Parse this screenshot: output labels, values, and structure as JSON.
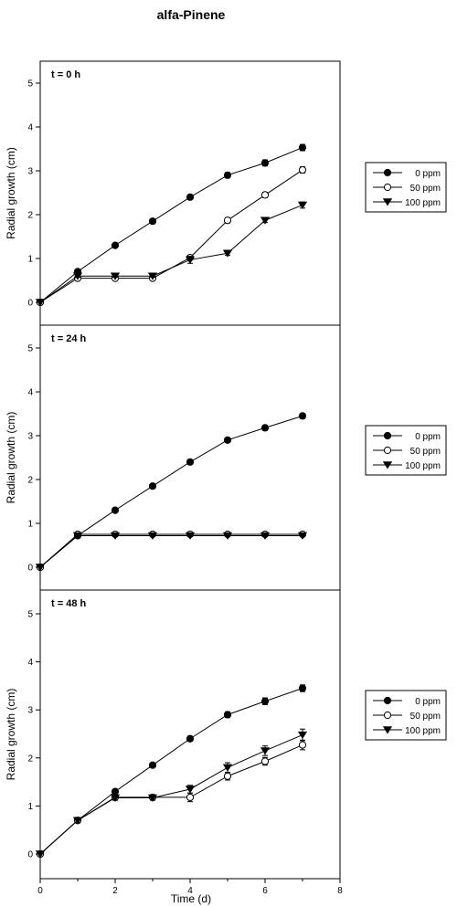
{
  "figure": {
    "title": "alfa-Pinene",
    "xlabel": "Time (d)"
  },
  "chart_data": [
    {
      "type": "line",
      "panel_label": "t = 0 h",
      "ylabel": "Radial growth (cm)",
      "x": [
        0,
        1,
        2,
        3,
        4,
        5,
        6,
        7
      ],
      "xlim": [
        0,
        8
      ],
      "ylim": [
        0,
        5.5
      ],
      "yticks": [
        0,
        1,
        2,
        3,
        4,
        5
      ],
      "xticks": [],
      "legend_position": "right",
      "series": [
        {
          "name": "0 ppm",
          "marker": "filled-circle",
          "values": [
            0,
            0.7,
            1.3,
            1.85,
            2.4,
            2.9,
            3.18,
            3.53
          ],
          "errors": [
            0,
            0.04,
            0.04,
            0.04,
            0.05,
            0.06,
            0.07,
            0.07
          ]
        },
        {
          "name": "50 ppm",
          "marker": "open-circle",
          "values": [
            0,
            0.55,
            0.55,
            0.55,
            1.02,
            1.87,
            2.45,
            3.02
          ],
          "errors": [
            0,
            0.04,
            0.04,
            0.04,
            0.05,
            0.06,
            0.06,
            0.07
          ]
        },
        {
          "name": "100 ppm",
          "marker": "filled-triangle-down",
          "values": [
            0,
            0.6,
            0.6,
            0.6,
            0.97,
            1.12,
            1.87,
            2.22
          ],
          "errors": [
            0,
            0.03,
            0.03,
            0.03,
            0.08,
            0.05,
            0.05,
            0.07
          ]
        }
      ]
    },
    {
      "type": "line",
      "panel_label": "t = 24 h",
      "ylabel": "Radial growth (cm)",
      "x": [
        0,
        1,
        2,
        3,
        4,
        5,
        6,
        7
      ],
      "xlim": [
        0,
        8
      ],
      "ylim": [
        0,
        5.5
      ],
      "yticks": [
        0,
        1,
        2,
        3,
        4,
        5
      ],
      "xticks": [],
      "legend_position": "right",
      "series": [
        {
          "name": "0 ppm",
          "marker": "filled-circle",
          "values": [
            0,
            0.72,
            1.3,
            1.85,
            2.4,
            2.9,
            3.18,
            3.45
          ],
          "errors": [
            0,
            0.04,
            0.04,
            0.04,
            0.05,
            0.05,
            0.06,
            0.06
          ]
        },
        {
          "name": "50 ppm",
          "marker": "open-circle",
          "values": [
            0,
            0.75,
            0.75,
            0.75,
            0.75,
            0.75,
            0.75,
            0.75
          ],
          "errors": [
            0,
            0.02,
            0.02,
            0.02,
            0.02,
            0.02,
            0.02,
            0.02
          ]
        },
        {
          "name": "100 ppm",
          "marker": "filled-triangle-down",
          "values": [
            0,
            0.72,
            0.72,
            0.72,
            0.72,
            0.72,
            0.72,
            0.72
          ],
          "errors": [
            0,
            0.02,
            0.02,
            0.02,
            0.02,
            0.02,
            0.02,
            0.02
          ]
        }
      ]
    },
    {
      "type": "line",
      "panel_label": "t = 48 h",
      "ylabel": "Radial growth (cm)",
      "x": [
        0,
        1,
        2,
        3,
        4,
        5,
        6,
        7
      ],
      "xlim": [
        0,
        8
      ],
      "ylim": [
        0,
        5.5
      ],
      "yticks": [
        0,
        1,
        2,
        3,
        4,
        5
      ],
      "xticks": [
        0,
        2,
        4,
        6,
        8
      ],
      "legend_position": "right",
      "series": [
        {
          "name": "0 ppm",
          "marker": "filled-circle",
          "values": [
            0,
            0.7,
            1.3,
            1.85,
            2.4,
            2.9,
            3.18,
            3.45
          ],
          "errors": [
            0,
            0.04,
            0.04,
            0.04,
            0.05,
            0.06,
            0.07,
            0.07
          ]
        },
        {
          "name": "50 ppm",
          "marker": "open-circle",
          "values": [
            0,
            0.7,
            1.18,
            1.18,
            1.18,
            1.62,
            1.93,
            2.27
          ],
          "errors": [
            0,
            0.04,
            0.05,
            0.05,
            0.09,
            0.08,
            0.08,
            0.1
          ]
        },
        {
          "name": "100 ppm",
          "marker": "filled-triangle-down",
          "values": [
            0,
            0.7,
            1.17,
            1.17,
            1.35,
            1.8,
            2.15,
            2.48
          ],
          "errors": [
            0,
            0.04,
            0.05,
            0.05,
            0.08,
            0.1,
            0.1,
            0.12
          ]
        }
      ]
    }
  ]
}
